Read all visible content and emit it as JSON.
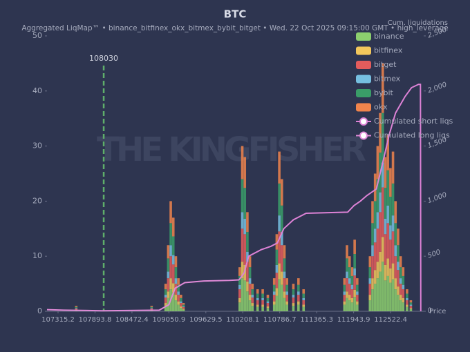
{
  "chart_data": {
    "type": "bar",
    "stacked": true,
    "title": "BTC",
    "subtitle": "Aggregated LiqMap™  •  binance_bitfinex_okx_bitmex_bybit_bitget  •  Wed. 22 Oct 2025 09:15:00 GMT  •  high_leverage",
    "y2_label": "Cum. liquidations",
    "x_label": "Price",
    "watermark": "THE KINGFISHER",
    "grid": false,
    "legend": "top-right",
    "marker": {
      "x": 108030,
      "color": "#5fae6a"
    },
    "xlim": [
      107142,
      113041
    ],
    "xticks": [
      107315.2,
      107893.8,
      108472.4,
      109050.9,
      109629.5,
      110208.1,
      110786.7,
      111365.3,
      111943.9,
      112522.4
    ],
    "ylim": [
      0,
      50
    ],
    "yticks": [
      0,
      10,
      20,
      30,
      40,
      50
    ],
    "y2lim": [
      0,
      2500
    ],
    "y2ticks": [
      0,
      500,
      {
        "value": 1000,
        "label": "1,000"
      },
      {
        "value": 1500,
        "label": "1,500"
      },
      {
        "value": 2000,
        "label": "2,000"
      },
      {
        "value": 2500,
        "label": "2,500"
      }
    ],
    "x": [
      107600,
      108780,
      109000,
      109040,
      109080,
      109120,
      109160,
      109200,
      109240,
      109280,
      110160,
      110200,
      110240,
      110280,
      110320,
      110360,
      110440,
      110520,
      110600,
      110700,
      110740,
      110780,
      110820,
      110860,
      110900,
      111000,
      111080,
      111160,
      111800,
      111840,
      111880,
      111920,
      111960,
      112000,
      112200,
      112240,
      112280,
      112320,
      112360,
      112400,
      112440,
      112480,
      112520,
      112560,
      112600,
      112640,
      112680,
      112720,
      112780,
      112840
    ],
    "series": [
      {
        "name": "binance",
        "color": "#8ccf6e",
        "values": [
          0.2,
          0.2,
          1,
          2.4,
          4,
          3.4,
          2,
          1.2,
          0.6,
          0.3,
          1.6,
          6,
          5.6,
          3.6,
          2,
          1,
          0.8,
          0.8,
          0.6,
          1.2,
          2.8,
          5.8,
          4.8,
          2.4,
          1.2,
          1,
          1.2,
          0.8,
          1.2,
          2.4,
          2,
          1.6,
          2.6,
          1.2,
          2,
          4,
          5,
          6,
          7.2,
          9,
          5.6,
          6.4,
          5.2,
          5.8,
          4,
          3,
          2,
          1.6,
          0.8,
          0.4
        ]
      },
      {
        "name": "bitfinex",
        "color": "#f2c75c",
        "values": [
          0.1,
          0.1,
          0.5,
          1.2,
          2,
          1.7,
          1,
          0.6,
          0.3,
          0.15,
          0.8,
          3,
          2.8,
          1.8,
          1,
          0.5,
          0.4,
          0.4,
          0.3,
          0.6,
          1.4,
          2.9,
          2.4,
          1.2,
          0.6,
          0.5,
          0.6,
          0.4,
          0.6,
          1.2,
          1,
          0.8,
          1.3,
          0.6,
          1,
          2,
          2.5,
          3,
          3.6,
          4.5,
          2.8,
          3.2,
          2.6,
          2.9,
          2,
          1.5,
          1,
          0.8,
          0.4,
          0.2
        ]
      },
      {
        "name": "bitget",
        "color": "#e45c5c",
        "values": [
          0.2,
          0.2,
          1,
          2.4,
          4,
          3.4,
          2,
          1.2,
          0.6,
          0.3,
          1.6,
          6,
          5.6,
          3.6,
          2,
          1,
          0.8,
          0.8,
          0.6,
          1.2,
          2.8,
          5.8,
          4.8,
          2.4,
          1.2,
          1,
          1.2,
          0.8,
          1.2,
          2.4,
          2,
          1.6,
          2.6,
          1.2,
          2,
          4,
          5,
          6,
          7.2,
          9,
          5.6,
          6.4,
          5.2,
          5.8,
          4,
          3,
          2,
          1.6,
          0.8,
          0.4
        ]
      },
      {
        "name": "bitmex",
        "color": "#76bfe0",
        "values": [
          0.1,
          0.1,
          0.5,
          1.2,
          2,
          1.7,
          1,
          0.6,
          0.3,
          0.15,
          0.8,
          3,
          2.8,
          1.8,
          1,
          0.5,
          0.4,
          0.4,
          0.3,
          0.6,
          1.4,
          2.9,
          2.4,
          1.2,
          0.6,
          0.5,
          0.6,
          0.4,
          0.6,
          1.2,
          1,
          0.8,
          1.3,
          0.6,
          1,
          2,
          2.5,
          3,
          3.6,
          4.5,
          2.8,
          3.2,
          2.6,
          2.9,
          2,
          1.5,
          1,
          0.8,
          0.4,
          0.2
        ]
      },
      {
        "name": "bybit",
        "color": "#3a9d68",
        "values": [
          0.2,
          0.2,
          1,
          2.4,
          4,
          3.4,
          2,
          1.2,
          0.6,
          0.3,
          1.6,
          6,
          5.6,
          3.6,
          2,
          1,
          0.8,
          0.8,
          0.6,
          1.2,
          2.8,
          5.8,
          4.8,
          2.4,
          1.2,
          1,
          1.2,
          0.8,
          1.2,
          2.4,
          2,
          1.6,
          2.6,
          1.2,
          2,
          4,
          5,
          6,
          7.2,
          9,
          5.6,
          6.4,
          5.2,
          5.8,
          4,
          3,
          2,
          1.6,
          0.8,
          0.4
        ]
      },
      {
        "name": "okx",
        "color": "#f0844c",
        "values": [
          0.2,
          0.2,
          1,
          2.4,
          4,
          3.4,
          2,
          1.2,
          0.6,
          0.3,
          1.6,
          6,
          5.6,
          3.6,
          2,
          1,
          0.8,
          0.8,
          0.6,
          1.2,
          2.8,
          5.8,
          4.8,
          2.4,
          1.2,
          1,
          1.2,
          0.8,
          1.2,
          2.4,
          2,
          1.6,
          2.6,
          1.2,
          2,
          4,
          5,
          6,
          7.2,
          9,
          5.6,
          6.4,
          5.2,
          5.8,
          4,
          3,
          2,
          1.6,
          0.8,
          0.4
        ]
      }
    ],
    "lines": [
      {
        "name": "Cumulated short liqs",
        "color": "#dd82d6",
        "axis": "y2",
        "x": [
          110150,
          110230,
          110300,
          110500,
          110650,
          110750,
          110850,
          111000,
          111200,
          111850,
          111950,
          112050,
          112150,
          112300,
          112400,
          112500,
          112600,
          112750,
          112850,
          112960,
          112990,
          112995
        ],
        "values": [
          285,
          350,
          500,
          560,
          590,
          620,
          750,
          830,
          890,
          900,
          960,
          1000,
          1050,
          1110,
          1350,
          1600,
          1800,
          1950,
          2030,
          2060,
          2060,
          0
        ]
      },
      {
        "name": "Cumulated long liqs",
        "color": "#e08ad8",
        "axis": "y2",
        "x": [
          107142,
          107400,
          108000,
          108900,
          109050,
          109150,
          109300,
          109600,
          110000,
          110150
        ],
        "values": [
          15,
          10,
          5,
          10,
          60,
          210,
          260,
          275,
          280,
          285
        ]
      }
    ]
  }
}
